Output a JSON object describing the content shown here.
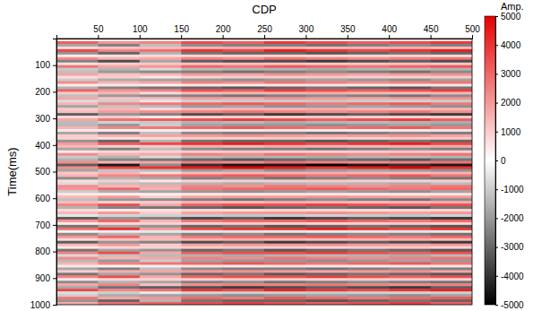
{
  "chart_data": {
    "type": "heatmap",
    "x_label": "CDP",
    "y_label": "Time(ms)",
    "xlim": [
      0,
      500
    ],
    "xticks": [
      50,
      100,
      150,
      200,
      250,
      300,
      350,
      400,
      450,
      500
    ],
    "ylim": [
      0,
      1000
    ],
    "yticks": [
      100,
      200,
      300,
      400,
      500,
      600,
      700,
      800,
      900,
      1000
    ],
    "x": [
      25,
      75,
      125,
      175,
      225,
      275,
      325,
      375,
      425,
      475
    ],
    "y": [
      5,
      15,
      25,
      35,
      45,
      55,
      65,
      75,
      85,
      95,
      105,
      115,
      125,
      135,
      145,
      155,
      165,
      175,
      185,
      195,
      205,
      215,
      225,
      235,
      245,
      255,
      265,
      275,
      285,
      295,
      305,
      315,
      325,
      335,
      345,
      355,
      365,
      375,
      385,
      395,
      405,
      415,
      425,
      435,
      445,
      455,
      465,
      475,
      485,
      495,
      505,
      515,
      525,
      535,
      545,
      555,
      565,
      575,
      585,
      595,
      605,
      615,
      625,
      635,
      645,
      655,
      665,
      675,
      685,
      695,
      705,
      715,
      725,
      735,
      745,
      755,
      765,
      775,
      785,
      795,
      805,
      815,
      825,
      835,
      845,
      855,
      865,
      875,
      885,
      895,
      905,
      915,
      925,
      935,
      945,
      955,
      965,
      975,
      985,
      995
    ],
    "z": [
      [
        250,
        400,
        450,
        500,
        550,
        500,
        450,
        500,
        550,
        450
      ],
      [
        3150,
        2100,
        2450,
        3500,
        3150,
        3850,
        3500,
        3150,
        3500,
        3850
      ],
      [
        -1750,
        -2500,
        -1250,
        -2250,
        -2500,
        -2500,
        -2750,
        -2500,
        -2250,
        -2500
      ],
      [
        750,
        1200,
        1350,
        1500,
        1650,
        1500,
        1350,
        1500,
        1650,
        1350
      ],
      [
        3600,
        2400,
        2800,
        4000,
        3600,
        4400,
        4000,
        3600,
        4000,
        4400
      ],
      [
        -2100,
        -3000,
        -1500,
        -2700,
        -3000,
        -3000,
        -3300,
        -3000,
        -2700,
        -3000
      ],
      [
        400,
        640,
        720,
        800,
        880,
        800,
        720,
        800,
        880,
        720
      ],
      [
        2250,
        1500,
        1750,
        2500,
        2250,
        2750,
        2500,
        2250,
        2500,
        2750
      ],
      [
        -2450,
        -3500,
        -1750,
        -3150,
        -3500,
        -3500,
        -3850,
        -3500,
        -3150,
        -3500
      ],
      [
        600,
        960,
        1080,
        1200,
        1320,
        1200,
        1080,
        1200,
        1320,
        1080
      ],
      [
        2700,
        1800,
        2100,
        3000,
        2700,
        3300,
        3000,
        2700,
        3000,
        3300
      ],
      [
        -1050,
        -1500,
        -750,
        -1350,
        -1500,
        -1500,
        -1650,
        -1500,
        -1350,
        -1500
      ],
      [
        -1250,
        -2000,
        -2250,
        -2500,
        -2750,
        -2500,
        -2250,
        -2500,
        -2750,
        -2250
      ],
      [
        1800,
        1200,
        1400,
        2000,
        1800,
        2200,
        2000,
        1800,
        2000,
        2200
      ],
      [
        700,
        1000,
        500,
        900,
        1000,
        1000,
        1100,
        1000,
        900,
        1000
      ],
      [
        -1000,
        -1600,
        -1800,
        -2000,
        -2200,
        -2000,
        -1800,
        -2000,
        -2200,
        -1800
      ],
      [
        2250,
        1500,
        1750,
        2500,
        2250,
        2750,
        2500,
        2250,
        2500,
        2750
      ],
      [
        350,
        500,
        250,
        450,
        500,
        500,
        550,
        500,
        450,
        500
      ],
      [
        -1500,
        -2400,
        -2700,
        -3000,
        -3300,
        -3000,
        -2700,
        -3000,
        -3300,
        -2700
      ],
      [
        3150,
        2100,
        2450,
        3500,
        3150,
        3850,
        3500,
        3150,
        3500,
        3850
      ],
      [
        1050,
        1500,
        750,
        1350,
        1500,
        1500,
        1650,
        1500,
        1350,
        1500
      ],
      [
        -1250,
        -2000,
        -2250,
        -2500,
        -2750,
        -2500,
        -2250,
        -2500,
        -2750,
        -2250
      ],
      [
        1800,
        1200,
        1400,
        2000,
        1800,
        2200,
        2000,
        1800,
        2000,
        2200
      ],
      [
        -700,
        -1000,
        -500,
        -900,
        -1000,
        -1000,
        -1100,
        -1000,
        -900,
        -1000
      ],
      [
        1500,
        2400,
        2700,
        3000,
        3300,
        3000,
        2700,
        3000,
        3300,
        2700
      ],
      [
        -1800,
        -1200,
        -1400,
        -2000,
        -1800,
        -2200,
        -2000,
        -1800,
        -2000,
        -2200
      ],
      [
        1050,
        1500,
        750,
        1350,
        1500,
        1500,
        1650,
        1500,
        1350,
        1500
      ],
      [
        1250,
        2000,
        2250,
        2500,
        2750,
        2500,
        2250,
        2500,
        2750,
        2250
      ],
      [
        -3150,
        -2100,
        -2450,
        -3500,
        -3150,
        -3850,
        -3500,
        -3150,
        -3500,
        -3850
      ],
      [
        700,
        1000,
        500,
        900,
        1000,
        1000,
        1100,
        1000,
        900,
        1000
      ],
      [
        1750,
        2800,
        3150,
        3500,
        3850,
        3500,
        3150,
        3500,
        3850,
        3150
      ],
      [
        -1350,
        -900,
        -1050,
        -1500,
        -1350,
        -1650,
        -1500,
        -1350,
        -1500,
        -1650
      ],
      [
        -1400,
        -2000,
        -1000,
        -1800,
        -2000,
        -2000,
        -2200,
        -2000,
        -1800,
        -2000
      ],
      [
        1500,
        2400,
        2700,
        3000,
        3300,
        3000,
        2700,
        3000,
        3300,
        2700
      ],
      [
        450,
        300,
        350,
        500,
        450,
        550,
        500,
        450,
        500,
        550
      ],
      [
        -1750,
        -2500,
        -1250,
        -2250,
        -2500,
        -2500,
        -2750,
        -2500,
        -2250,
        -2500
      ],
      [
        1000,
        1600,
        1800,
        2000,
        2200,
        2000,
        1800,
        2000,
        2200,
        1800
      ],
      [
        900,
        600,
        700,
        1000,
        900,
        1100,
        1000,
        900,
        1000,
        1100
      ],
      [
        -2100,
        -3000,
        -1500,
        -2700,
        -3000,
        -3000,
        -3300,
        -3000,
        -2700,
        -3000
      ],
      [
        2000,
        3200,
        3600,
        4000,
        4400,
        4000,
        3600,
        4000,
        4400,
        3600
      ],
      [
        1350,
        900,
        1050,
        1500,
        1350,
        1650,
        1500,
        1350,
        1500,
        1650
      ],
      [
        -1750,
        -2500,
        -1250,
        -2250,
        -2500,
        -2500,
        -2750,
        -2500,
        -2250,
        -2500
      ],
      [
        500,
        800,
        900,
        1000,
        1100,
        1000,
        900,
        1000,
        1100,
        900
      ],
      [
        2250,
        1500,
        1750,
        2500,
        2250,
        2750,
        2500,
        2250,
        2500,
        2750
      ],
      [
        -1050,
        -1500,
        -750,
        -1350,
        -1500,
        -1500,
        -1650,
        -1500,
        -1350,
        -1500
      ],
      [
        -1500,
        -2400,
        -2700,
        -3000,
        -3300,
        -3000,
        -2700,
        -3000,
        -3300,
        -2700
      ],
      [
        2250,
        1500,
        1750,
        2500,
        2250,
        2750,
        2500,
        2250,
        2500,
        2750
      ],
      [
        -3150,
        -4500,
        -2250,
        -4050,
        -4500,
        -4500,
        -4950,
        -4500,
        -4050,
        -4500
      ],
      [
        2250,
        3600,
        4050,
        4500,
        4950,
        4500,
        4050,
        4500,
        4950,
        4050
      ],
      [
        -1800,
        -1200,
        -1400,
        -2000,
        -1800,
        -2200,
        -2000,
        -1800,
        -2000,
        -2200
      ],
      [
        1050,
        1500,
        750,
        1350,
        1500,
        1500,
        1650,
        1500,
        1350,
        1500
      ],
      [
        1500,
        2400,
        2700,
        3000,
        3300,
        3000,
        2700,
        3000,
        3300,
        2700
      ],
      [
        -2250,
        -1500,
        -1750,
        -2500,
        -2250,
        -2750,
        -2500,
        -2250,
        -2500,
        -2750
      ],
      [
        700,
        1000,
        500,
        900,
        1000,
        1000,
        1100,
        1000,
        900,
        1000
      ],
      [
        -750,
        -1200,
        -1350,
        -1500,
        -1650,
        -1500,
        -1350,
        -1500,
        -1650,
        -1350
      ],
      [
        2250,
        1500,
        1750,
        2500,
        2250,
        2750,
        2500,
        2250,
        2500,
        2750
      ],
      [
        2100,
        3000,
        1500,
        2700,
        3000,
        3000,
        3300,
        3000,
        2700,
        3000
      ],
      [
        -1000,
        -1600,
        -1800,
        -2000,
        -2200,
        -2000,
        -1800,
        -2000,
        -2200,
        -1800
      ],
      [
        450,
        300,
        350,
        500,
        450,
        550,
        500,
        450,
        500,
        550
      ],
      [
        1400,
        2000,
        1000,
        1800,
        2000,
        2000,
        2200,
        2000,
        1800,
        2000
      ],
      [
        -1250,
        -2000,
        -2250,
        -2500,
        -2750,
        -2500,
        -2250,
        -2500,
        -2750,
        -2250
      ],
      [
        1350,
        900,
        1050,
        1500,
        1350,
        1650,
        1500,
        1350,
        1500,
        1650
      ],
      [
        2450,
        3500,
        1750,
        3150,
        3500,
        3500,
        3850,
        3500,
        3150,
        3500
      ],
      [
        -1500,
        -2400,
        -2700,
        -3000,
        -3300,
        -3000,
        -2700,
        -3000,
        -3300,
        -2700
      ],
      [
        720,
        480,
        560,
        800,
        720,
        880,
        800,
        720,
        800,
        880
      ],
      [
        1400,
        2000,
        1000,
        1800,
        2000,
        2000,
        2200,
        2000,
        1800,
        2000
      ],
      [
        -500,
        -800,
        -900,
        -1000,
        -1100,
        -1000,
        -900,
        -1000,
        -1100,
        -900
      ],
      [
        -3150,
        -2100,
        -2450,
        -3500,
        -3150,
        -3850,
        -3500,
        -3150,
        -3500,
        -3850
      ],
      [
        2100,
        3000,
        1500,
        2700,
        3000,
        3000,
        3300,
        3000,
        2700,
        3000
      ],
      [
        500,
        800,
        900,
        1000,
        1100,
        1000,
        900,
        1000,
        1100,
        900
      ],
      [
        -2700,
        -1800,
        -2100,
        -3000,
        -2700,
        -3300,
        -3000,
        -2700,
        -3000,
        -3300
      ],
      [
        2800,
        4000,
        2000,
        3600,
        4000,
        4000,
        4400,
        4000,
        3600,
        4000
      ],
      [
        -250,
        -400,
        -450,
        -500,
        -550,
        -500,
        -450,
        -500,
        -550,
        -450
      ],
      [
        -2250,
        -1500,
        -1750,
        -2500,
        -2250,
        -2750,
        -2500,
        -2250,
        -2500,
        -2750
      ],
      [
        2100,
        3000,
        1500,
        2700,
        3000,
        3000,
        3300,
        3000,
        2700,
        3000
      ],
      [
        750,
        1200,
        1350,
        1500,
        1650,
        1500,
        1350,
        1500,
        1650,
        1350
      ],
      [
        -3150,
        -2100,
        -2450,
        -3500,
        -3150,
        -3850,
        -3500,
        -3150,
        -3500,
        -3850
      ],
      [
        1400,
        2000,
        1000,
        1800,
        2000,
        2000,
        2200,
        2000,
        1800,
        2000
      ],
      [
        500,
        800,
        900,
        1000,
        1100,
        1000,
        900,
        1000,
        1100,
        900
      ],
      [
        -2700,
        -1800,
        -2100,
        -3000,
        -2700,
        -3300,
        -3000,
        -2700,
        -3000,
        -3300
      ],
      [
        2450,
        3500,
        1750,
        3150,
        3500,
        3500,
        3850,
        3500,
        3150,
        3500
      ],
      [
        -750,
        -1200,
        -1350,
        -1500,
        -1650,
        -1500,
        -1350,
        -1500,
        -1650,
        -1350
      ],
      [
        2250,
        1500,
        1750,
        2500,
        2250,
        2750,
        2500,
        2250,
        2500,
        2750
      ],
      [
        -1400,
        -2000,
        -1000,
        -1800,
        -2000,
        -2000,
        -2200,
        -2000,
        -1800,
        -2000
      ],
      [
        1500,
        2400,
        2700,
        3000,
        3300,
        3000,
        2700,
        3000,
        3300,
        2700
      ],
      [
        450,
        300,
        350,
        500,
        450,
        550,
        500,
        450,
        500,
        550
      ],
      [
        -1750,
        -2500,
        -1250,
        -2250,
        -2500,
        -2500,
        -2750,
        -2500,
        -2250,
        -2500
      ],
      [
        1000,
        1600,
        1800,
        2000,
        2200,
        2000,
        1800,
        2000,
        2200,
        1800
      ],
      [
        -2700,
        -1800,
        -2100,
        -3000,
        -2700,
        -3300,
        -3000,
        -2700,
        -3000,
        -3300
      ],
      [
        2450,
        3500,
        1750,
        3150,
        3500,
        3500,
        3850,
        3500,
        3150,
        3500
      ],
      [
        500,
        800,
        900,
        1000,
        1100,
        1000,
        900,
        1000,
        1100,
        900
      ],
      [
        -2250,
        -1500,
        -1750,
        -2500,
        -2250,
        -2750,
        -2500,
        -2250,
        -2500,
        -2750
      ],
      [
        1750,
        2500,
        1250,
        2250,
        2500,
        2500,
        2750,
        2500,
        2250,
        2500
      ],
      [
        -1750,
        -2800,
        -3150,
        -3500,
        -3850,
        -3500,
        -3150,
        -3500,
        -3850,
        -3150
      ],
      [
        3600,
        2400,
        2800,
        4000,
        3600,
        4400,
        4000,
        3600,
        4000,
        4400
      ],
      [
        -700,
        -1000,
        -500,
        -900,
        -1000,
        -1000,
        -1100,
        -1000,
        -900,
        -1000
      ],
      [
        -1000,
        -1600,
        -1800,
        -2000,
        -2200,
        -2000,
        -1800,
        -2000,
        -2200,
        -1800
      ],
      [
        2700,
        1800,
        2100,
        3000,
        2700,
        3300,
        3000,
        2700,
        3000,
        3300
      ],
      [
        -2100,
        -3000,
        -1500,
        -2700,
        -3000,
        -3000,
        -3300,
        -3000,
        -2700,
        -3000
      ],
      [
        1750,
        2800,
        3150,
        3500,
        3850,
        3500,
        3150,
        3500,
        3850,
        3150
      ]
    ],
    "colorbar": {
      "label": "Amp.",
      "range": [
        -5000,
        5000
      ],
      "ticks": [
        5000,
        4000,
        3000,
        2000,
        1000,
        0,
        -1000,
        -2000,
        -3000,
        -4000,
        -5000
      ]
    }
  }
}
